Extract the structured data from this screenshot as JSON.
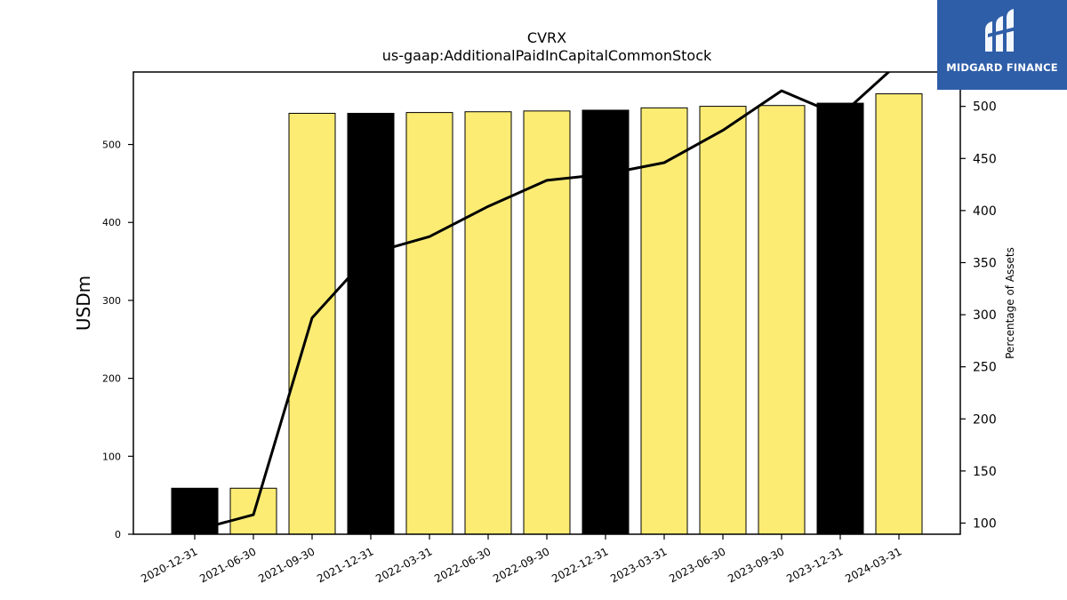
{
  "chart_data": {
    "type": "bar",
    "title": "CVRX",
    "subtitle": "us-gaap:AdditionalPaidInCapitalCommonStock",
    "ylabel": "USDm",
    "y2label": "Percentage of Assets",
    "categories": [
      "2020-12-31",
      "2021-06-30",
      "2021-09-30",
      "2021-12-31",
      "2022-03-31",
      "2022-06-30",
      "2022-09-30",
      "2022-12-31",
      "2023-03-31",
      "2023-06-30",
      "2023-09-30",
      "2023-12-31",
      "2024-03-31"
    ],
    "series": [
      {
        "type": "bar",
        "values": [
          59,
          59,
          540,
          540,
          541,
          542,
          543,
          544,
          547,
          549,
          550,
          553,
          565
        ],
        "bar_colors": [
          "#000000",
          "#fcec74",
          "#fcec74",
          "#000000",
          "#fcec74",
          "#fcec74",
          "#fcec74",
          "#000000",
          "#fcec74",
          "#fcec74",
          "#fcec74",
          "#000000",
          "#fcec74"
        ]
      },
      {
        "type": "line",
        "axis": "right",
        "values": [
          93,
          108,
          297,
          359,
          375,
          404,
          429,
          435,
          446,
          477,
          515,
          491,
          542
        ],
        "color": "#000000"
      }
    ],
    "ylim": [
      0,
      593
    ],
    "yticks": [
      0,
      100,
      200,
      300,
      400,
      500
    ],
    "y2lim": [
      89.3,
      533
    ],
    "y2ticks": [
      100,
      150,
      200,
      250,
      300,
      350,
      400,
      450,
      500
    ],
    "grid": false,
    "legend": "none"
  },
  "logo": {
    "text": "MIDGARD FINANCE",
    "background": "#2f5ea8",
    "icon": "midgard-logo-icon"
  }
}
